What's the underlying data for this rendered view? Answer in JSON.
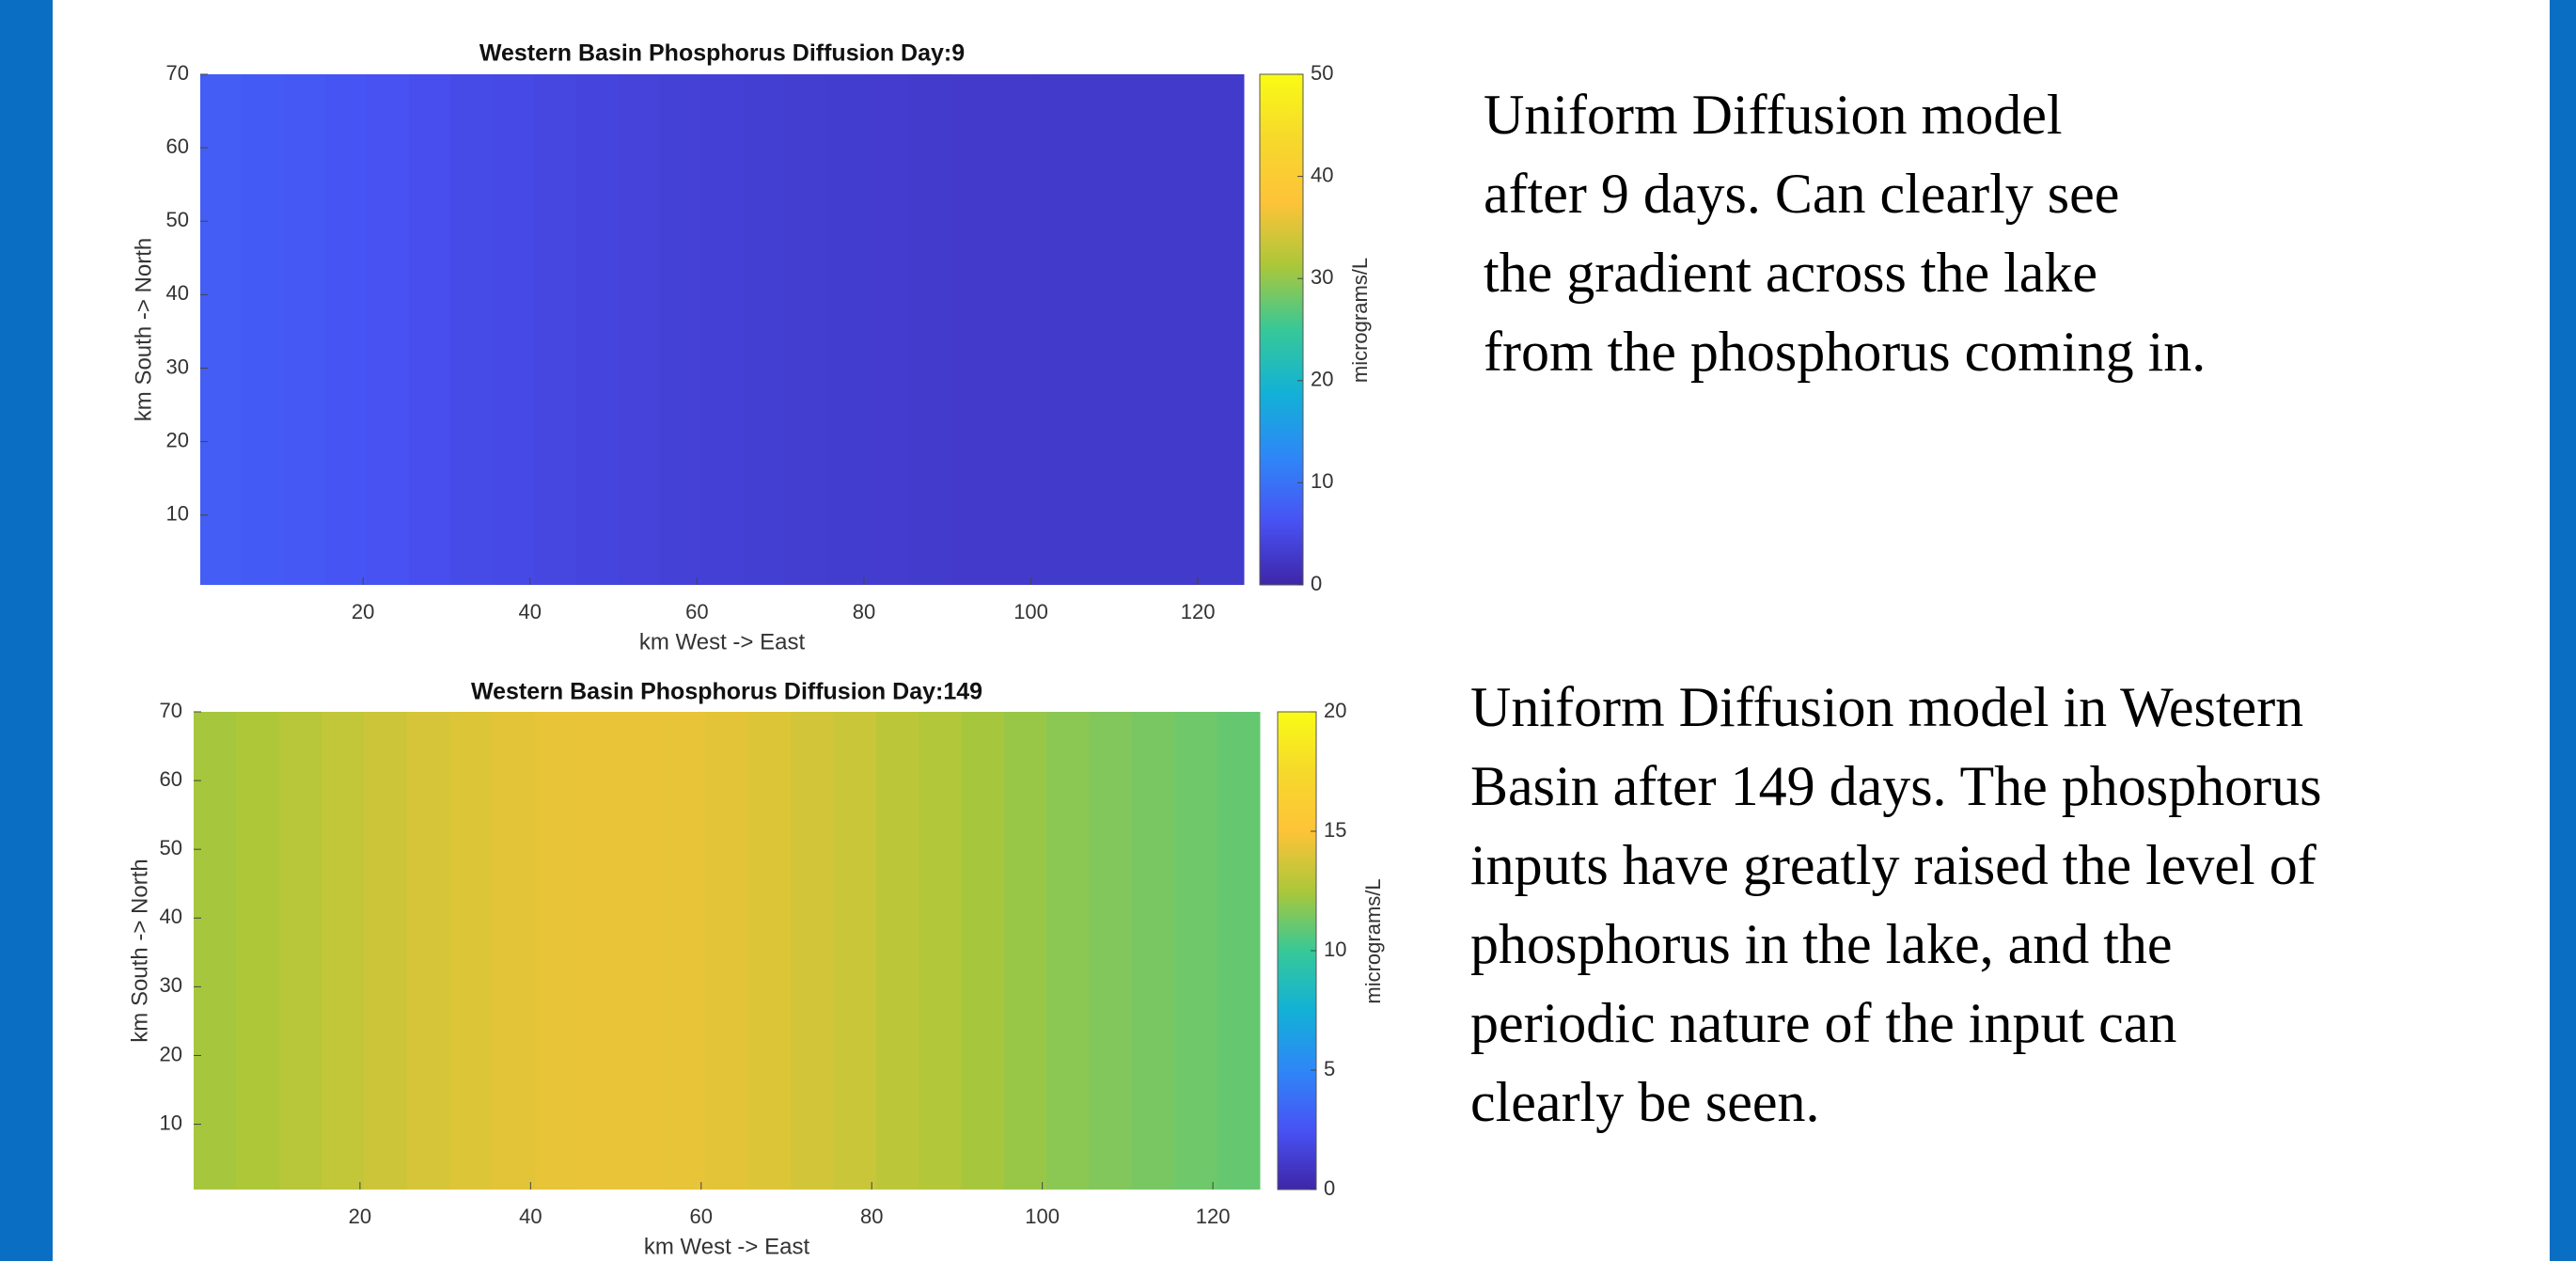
{
  "chart_data": [
    {
      "type": "heatmap",
      "title": "Western Basin Phosphorus Diffusion Day:9",
      "xlabel": "km West -> East",
      "ylabel": "km South -> North",
      "colorbar_label": "micrograms/L",
      "x": [
        3,
        8,
        13,
        18,
        23,
        28,
        33,
        38,
        43,
        48,
        53,
        58,
        63,
        68,
        73,
        78,
        83,
        88,
        93,
        98,
        103,
        108,
        113,
        118,
        123
      ],
      "values": [
        7.5,
        7.2,
        6.9,
        6.5,
        6.1,
        5.7,
        5.3,
        5.0,
        4.7,
        4.4,
        4.1,
        3.9,
        3.7,
        3.5,
        3.3,
        3.2,
        3.1,
        3.0,
        2.9,
        2.9,
        2.8,
        2.8,
        2.8,
        2.8,
        2.8
      ],
      "xlim": [
        0.5,
        125.5
      ],
      "ylim": [
        0.5,
        70
      ],
      "xticks": [
        20,
        40,
        60,
        80,
        100,
        120
      ],
      "yticks": [
        10,
        20,
        30,
        40,
        50,
        60,
        70
      ],
      "clim": [
        0,
        50
      ],
      "cticks": [
        0,
        10,
        20,
        30,
        40,
        50
      ]
    },
    {
      "type": "heatmap",
      "title": "Western Basin Phosphorus Diffusion Day:149",
      "xlabel": "km West -> East",
      "ylabel": "km South -> North",
      "colorbar_label": "micrograms/L",
      "x": [
        3,
        8,
        13,
        18,
        23,
        28,
        33,
        38,
        43,
        48,
        53,
        58,
        63,
        68,
        73,
        78,
        83,
        88,
        93,
        98,
        103,
        108,
        113,
        118,
        123
      ],
      "values": [
        12.4,
        12.6,
        12.9,
        13.2,
        13.5,
        13.8,
        14.0,
        14.2,
        14.3,
        14.4,
        14.4,
        14.3,
        14.2,
        14.0,
        13.7,
        13.4,
        13.0,
        12.7,
        12.4,
        12.1,
        11.8,
        11.6,
        11.4,
        11.2,
        11.0
      ],
      "xlim": [
        0.5,
        125.5
      ],
      "ylim": [
        0.5,
        70
      ],
      "xticks": [
        20,
        40,
        60,
        80,
        100,
        120
      ],
      "yticks": [
        10,
        20,
        30,
        40,
        50,
        60,
        70
      ],
      "clim": [
        0,
        20
      ],
      "cticks": [
        0,
        5,
        10,
        15,
        20
      ]
    }
  ],
  "notes": [
    {
      "lines": [
        "Uniform Diffusion model",
        "after 9 days. Can clearly see",
        "the gradient across the lake",
        "from the phosphorus coming in."
      ]
    },
    {
      "lines": [
        "Uniform Diffusion model in Western",
        "Basin after 149 days. The phosphorus",
        "inputs have greatly raised the level of",
        "phosphorus in the lake, and the",
        "periodic nature of the input can",
        "clearly be seen."
      ]
    }
  ]
}
